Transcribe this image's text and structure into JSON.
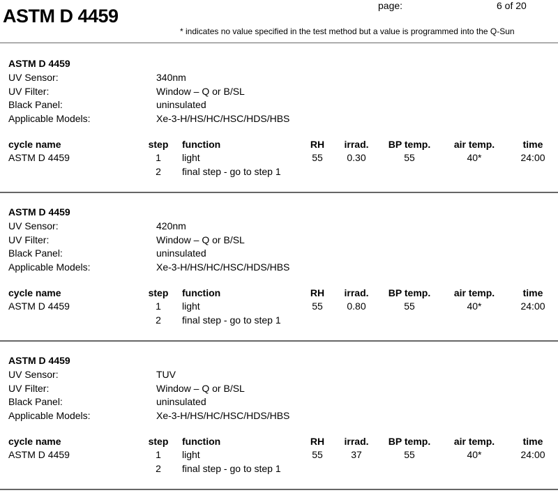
{
  "header": {
    "title": "ASTM D 4459",
    "page_label": "page:",
    "page_value": "6 of 20",
    "note": "* indicates no value specified in the test method but a value is programmed into the Q-Sun"
  },
  "labels": {
    "uv_sensor": "UV Sensor:",
    "uv_filter": "UV Filter:",
    "black_panel": "Black Panel:",
    "models": "Applicable Models:"
  },
  "columns": [
    "cycle name",
    "step",
    "function",
    "RH",
    "irrad.",
    "BP temp.",
    "air temp.",
    "time"
  ],
  "sections": [
    {
      "title": "ASTM D 4459",
      "uv_sensor": "340nm",
      "uv_filter": "Window – Q or B/SL",
      "black_panel": "uninsulated",
      "models": "Xe-3-H/HS/HC/HSC/HDS/HBS",
      "rows": [
        {
          "cycle": "ASTM D 4459",
          "step": "1",
          "function": "light",
          "rh": "55",
          "irrad": "0.30",
          "bp": "55",
          "air": "40*",
          "time": "24:00"
        },
        {
          "cycle": "",
          "step": "2",
          "function": "final step - go to step 1",
          "rh": "",
          "irrad": "",
          "bp": "",
          "air": "",
          "time": ""
        }
      ]
    },
    {
      "title": "ASTM D 4459",
      "uv_sensor": "420nm",
      "uv_filter": "Window – Q or B/SL",
      "black_panel": "uninsulated",
      "models": "Xe-3-H/HS/HC/HSC/HDS/HBS",
      "rows": [
        {
          "cycle": "ASTM D 4459",
          "step": "1",
          "function": "light",
          "rh": "55",
          "irrad": "0.80",
          "bp": "55",
          "air": "40*",
          "time": "24:00"
        },
        {
          "cycle": "",
          "step": "2",
          "function": "final step - go to step 1",
          "rh": "",
          "irrad": "",
          "bp": "",
          "air": "",
          "time": ""
        }
      ]
    },
    {
      "title": "ASTM D 4459",
      "uv_sensor": "TUV",
      "uv_filter": "Window – Q or B/SL",
      "black_panel": "uninsulated",
      "models": "Xe-3-H/HS/HC/HSC/HDS/HBS",
      "rows": [
        {
          "cycle": "ASTM D 4459",
          "step": "1",
          "function": "light",
          "rh": "55",
          "irrad": "37",
          "bp": "55",
          "air": "40*",
          "time": "24:00"
        },
        {
          "cycle": "",
          "step": "2",
          "function": "final step - go to step 1",
          "rh": "",
          "irrad": "",
          "bp": "",
          "air": "",
          "time": ""
        }
      ]
    }
  ]
}
